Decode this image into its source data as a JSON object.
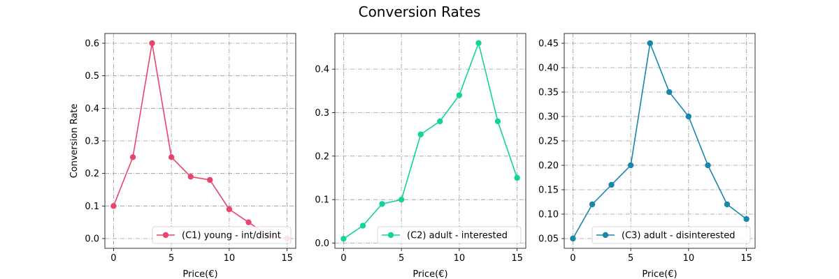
{
  "figure": {
    "title": "Conversion Rates"
  },
  "chart_data": [
    {
      "type": "line",
      "xlabel": "Price(€)",
      "ylabel": "Conversion Rate",
      "xlim": [
        -0.75,
        15.75
      ],
      "ylim": [
        -0.03,
        0.63
      ],
      "xticks": [
        0,
        5,
        10,
        15
      ],
      "xtick_labels": [
        "0",
        "5",
        "10",
        "15"
      ],
      "yticks": [
        0.0,
        0.1,
        0.2,
        0.3,
        0.4,
        0.5,
        0.6
      ],
      "ytick_labels": [
        "0.0",
        "0.1",
        "0.2",
        "0.3",
        "0.4",
        "0.5",
        "0.6"
      ],
      "grid": true,
      "legend_position": "lower-right",
      "series": [
        {
          "name": "(C1) young - int/disint",
          "color": "#e8456e",
          "x": [
            0,
            1.67,
            3.33,
            5,
            6.67,
            8.33,
            10,
            11.67,
            13.33,
            15
          ],
          "y": [
            0.1,
            0.25,
            0.6,
            0.25,
            0.19,
            0.18,
            0.09,
            0.05,
            0.01,
            0.0
          ]
        }
      ]
    },
    {
      "type": "line",
      "xlabel": "Price(€)",
      "ylabel": "",
      "xlim": [
        -0.75,
        15.75
      ],
      "ylim": [
        -0.012,
        0.482
      ],
      "xticks": [
        0,
        5,
        10,
        15
      ],
      "xtick_labels": [
        "0",
        "5",
        "10",
        "15"
      ],
      "yticks": [
        0.0,
        0.1,
        0.2,
        0.3,
        0.4
      ],
      "ytick_labels": [
        "0.0",
        "0.1",
        "0.2",
        "0.3",
        "0.4"
      ],
      "grid": true,
      "legend_position": "lower-right",
      "series": [
        {
          "name": "(C2) adult - interested",
          "color": "#12d39b",
          "x": [
            0,
            1.67,
            3.33,
            5,
            6.67,
            8.33,
            10,
            11.67,
            13.33,
            15
          ],
          "y": [
            0.01,
            0.04,
            0.09,
            0.1,
            0.25,
            0.28,
            0.34,
            0.46,
            0.28,
            0.15
          ]
        }
      ]
    },
    {
      "type": "line",
      "xlabel": "Price(€)",
      "ylabel": "",
      "xlim": [
        -0.75,
        15.75
      ],
      "ylim": [
        0.03,
        0.47
      ],
      "xticks": [
        0,
        5,
        10,
        15
      ],
      "xtick_labels": [
        "0",
        "5",
        "10",
        "15"
      ],
      "yticks": [
        0.05,
        0.1,
        0.15,
        0.2,
        0.25,
        0.3,
        0.35,
        0.4,
        0.45
      ],
      "ytick_labels": [
        "0.05",
        "0.10",
        "0.15",
        "0.20",
        "0.25",
        "0.30",
        "0.35",
        "0.40",
        "0.45"
      ],
      "grid": true,
      "legend_position": "lower-right",
      "series": [
        {
          "name": "(C3) adult - disinterested",
          "color": "#1787ab",
          "x": [
            0,
            1.67,
            3.33,
            5,
            6.67,
            8.33,
            10,
            11.67,
            13.33,
            15
          ],
          "y": [
            0.05,
            0.12,
            0.16,
            0.2,
            0.45,
            0.35,
            0.3,
            0.2,
            0.12,
            0.09
          ]
        }
      ]
    }
  ]
}
